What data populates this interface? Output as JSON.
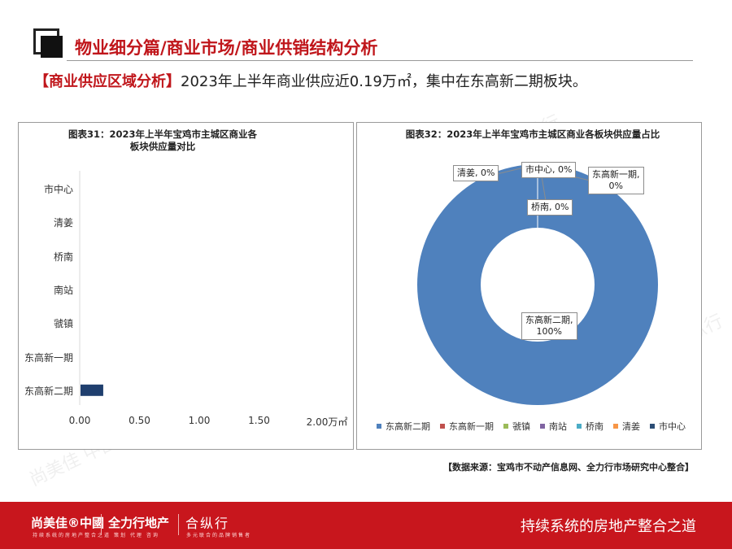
{
  "header": {
    "title": "物业细分篇/商业市场/商业供销结构分析"
  },
  "summary": {
    "tag": "【商业供应区域分析】",
    "text": "2023年上半年商业供应近0.19万㎡，集中在东高新二期板块。"
  },
  "watermarks": [
    "尚美佳 中國",
    "全力行地产",
    "合纵行"
  ],
  "chart_data": [
    {
      "type": "bar",
      "orientation": "horizontal",
      "title": "图表31：2023年上半年宝鸡市主城区商业各板块供应量对比",
      "categories": [
        "市中心",
        "清姜",
        "桥南",
        "南站",
        "虢镇",
        "东高新一期",
        "东高新二期"
      ],
      "values": [
        0,
        0,
        0,
        0,
        0,
        0,
        0.19
      ],
      "xlim": [
        0,
        2.0
      ],
      "xticks": [
        "0.00",
        "0.50",
        "1.00",
        "1.50",
        "2.00万㎡"
      ],
      "bar_color": "#1f3f6e",
      "grid": false
    },
    {
      "type": "pie",
      "variant": "donut",
      "title": "图表32：2023年上半年宝鸡市主城区商业各板块供应量占比",
      "labels": [
        "东高新二期",
        "东高新一期",
        "虢镇",
        "南站",
        "桥南",
        "清姜",
        "市中心"
      ],
      "values": [
        100,
        0,
        0,
        0,
        0,
        0,
        0
      ],
      "colors": [
        "#4f81bd",
        "#c0504d",
        "#9bbb59",
        "#8064a2",
        "#4bacc6",
        "#f79646",
        "#2c4d75"
      ],
      "data_labels": [
        {
          "text": "东高新二期,\n100%"
        },
        {
          "text": "东高新一期,\n0%"
        },
        {
          "text": "桥南, 0%"
        },
        {
          "text": "清姜, 0%"
        },
        {
          "text": "市中心, 0%"
        }
      ],
      "legend_position": "bottom"
    }
  ],
  "source": "【数据来源：宝鸡市不动产信息网、全力行市场研究中心整合】",
  "footer": {
    "brand1": "尚美佳®中國",
    "brand1_sub": "持续系统的房地产整合之道",
    "brand2": "全力行地产",
    "brand2_sub": "策划 代理 咨询",
    "brand3": "合纵行",
    "brand3_sub": "多元联合的品牌销售者",
    "slogan": "持续系统的房地产整合之道"
  }
}
